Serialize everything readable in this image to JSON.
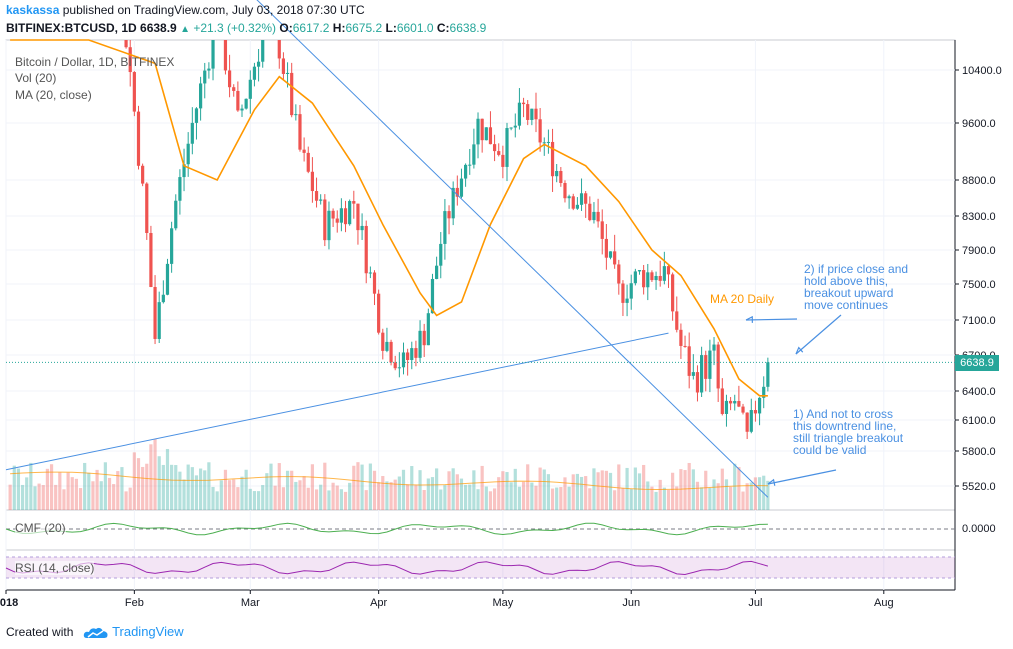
{
  "header": {
    "author": "kaskassa",
    "published": "published on TradingView.com, July 03, 2018 07:30 UTC",
    "symbol": "BITFINEX:BTCUSD, 1D",
    "last": "6638.9",
    "change": "+21.3 (+0.32%)",
    "o_label": "O:",
    "o": "6617.2",
    "h_label": "H:",
    "h": "6675.2",
    "l_label": "L:",
    "l": "6601.0",
    "c_label": "C:",
    "c": "6638.9"
  },
  "legend": {
    "title": "Bitcoin / Dollar, 1D, BITFINEX",
    "vol": "Vol (20)",
    "ma": "MA (20, close)"
  },
  "indicators": {
    "cmf": "CMF (20)",
    "rsi": "RSI (14, close)",
    "cmf_zero": "0.0000"
  },
  "annotations": {
    "ma_label": "MA 20 Daily",
    "note2": [
      "2) if price close and",
      "hold above this,",
      "breakout  upward",
      "move continues"
    ],
    "note1": [
      "1) And not to cross",
      "this downtrend line,",
      "still triangle breakout",
      "could be valid"
    ]
  },
  "price_tag": "6638.9",
  "footer": {
    "created": "Created with",
    "brand": "TradingView"
  },
  "colors": {
    "up": "#26a69a",
    "down": "#ef5350",
    "ma": "#ff9800",
    "trend": "#4a90e2",
    "cmf": "#4caf50",
    "rsi": "#9c27b0"
  },
  "chart_data": {
    "type": "candlestick",
    "y_ticks": [
      10400,
      9600,
      8800,
      8300,
      7900,
      7500,
      7100,
      6700,
      6400,
      6100,
      5800,
      5520
    ],
    "x_ticks": [
      "2018",
      "Feb",
      "Mar",
      "Apr",
      "May",
      "Jun",
      "Jul",
      "Aug"
    ],
    "last_close": 6638.9,
    "close_path": [
      [
        "2018-01-01",
        13500
      ],
      [
        "2018-01-07",
        16500
      ],
      [
        "2018-01-17",
        11000
      ],
      [
        "2018-01-28",
        11500
      ],
      [
        "2018-02-05",
        6900
      ],
      [
        "2018-02-10",
        8500
      ],
      [
        "2018-02-20",
        11200
      ],
      [
        "2018-02-25",
        9600
      ],
      [
        "2018-03-05",
        11400
      ],
      [
        "2018-03-12",
        9200
      ],
      [
        "2018-03-18",
        8200
      ],
      [
        "2018-03-25",
        8500
      ],
      [
        "2018-04-01",
        6900
      ],
      [
        "2018-04-06",
        6600
      ],
      [
        "2018-04-11",
        6950
      ],
      [
        "2018-04-15",
        8000
      ],
      [
        "2018-04-24",
        9600
      ],
      [
        "2018-04-30",
        9200
      ],
      [
        "2018-05-05",
        9800
      ],
      [
        "2018-05-10",
        9300
      ],
      [
        "2018-05-15",
        8700
      ],
      [
        "2018-05-22",
        8300
      ],
      [
        "2018-05-28",
        7400
      ],
      [
        "2018-06-02",
        7600
      ],
      [
        "2018-06-08",
        7650
      ],
      [
        "2018-06-12",
        6800
      ],
      [
        "2018-06-15",
        6500
      ],
      [
        "2018-06-20",
        6700
      ],
      [
        "2018-06-22",
        6100
      ],
      [
        "2018-06-25",
        6300
      ],
      [
        "2018-06-28",
        5900
      ],
      [
        "2018-07-01",
        6400
      ],
      [
        "2018-07-03",
        6638.9
      ]
    ],
    "ma20_path": [
      [
        "2018-01-01",
        15500
      ],
      [
        "2018-01-20",
        13000
      ],
      [
        "2018-02-05",
        10500
      ],
      [
        "2018-02-12",
        9000
      ],
      [
        "2018-02-20",
        8800
      ],
      [
        "2018-03-01",
        9800
      ],
      [
        "2018-03-07",
        10300
      ],
      [
        "2018-03-15",
        9900
      ],
      [
        "2018-03-25",
        9000
      ],
      [
        "2018-04-01",
        8200
      ],
      [
        "2018-04-10",
        7400
      ],
      [
        "2018-04-14",
        7150
      ],
      [
        "2018-04-20",
        7300
      ],
      [
        "2018-04-27",
        8200
      ],
      [
        "2018-05-05",
        9100
      ],
      [
        "2018-05-10",
        9300
      ],
      [
        "2018-05-20",
        9000
      ],
      [
        "2018-05-28",
        8500
      ],
      [
        "2018-06-05",
        7900
      ],
      [
        "2018-06-12",
        7600
      ],
      [
        "2018-06-20",
        7000
      ],
      [
        "2018-06-26",
        6500
      ],
      [
        "2018-07-01",
        6350
      ],
      [
        "2018-07-03",
        6350
      ]
    ],
    "downtrend_line": [
      [
        "2018-02-24",
        11800
      ],
      [
        "2018-07-03",
        5430
      ]
    ],
    "uptrend_line": [
      [
        "2017-12-31",
        5650
      ],
      [
        "2018-06-09",
        6950
      ]
    ]
  }
}
